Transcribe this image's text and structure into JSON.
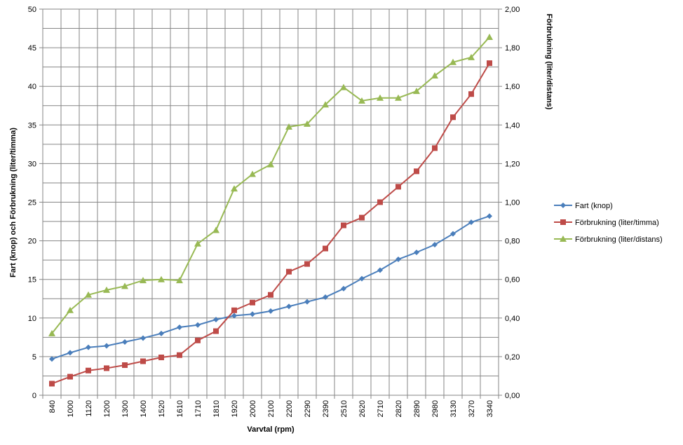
{
  "chart_data": {
    "type": "line",
    "title": "",
    "xlabel": "Varvtal (rpm)",
    "ylabel": "Fart (knop) och Förbrukning (liter/timma)",
    "y2label": "Förbrukning (liter/distans)",
    "ylim": [
      0,
      50
    ],
    "y2lim": [
      0,
      2
    ],
    "yticks": [
      "0",
      "5",
      "10",
      "15",
      "20",
      "25",
      "30",
      "35",
      "40",
      "45",
      "50"
    ],
    "y2ticks": [
      "0,00",
      "0,20",
      "0,40",
      "0,60",
      "0,80",
      "1,00",
      "1,20",
      "1,40",
      "1,60",
      "1,80",
      "2,00"
    ],
    "grid": true,
    "legend_position": "right",
    "categories": [
      "840",
      "1000",
      "1120",
      "1200",
      "1300",
      "1400",
      "1520",
      "1610",
      "1710",
      "1810",
      "1920",
      "2000",
      "2100",
      "2200",
      "2290",
      "2390",
      "2510",
      "2620",
      "2710",
      "2820",
      "2890",
      "2980",
      "3130",
      "3270",
      "3340"
    ],
    "series": [
      {
        "name": "Fart (knop)",
        "axis": "left",
        "color": "#4a7ebb",
        "marker": "diamond",
        "values": [
          4.7,
          5.5,
          6.2,
          6.4,
          6.9,
          7.4,
          8.0,
          8.8,
          9.1,
          9.8,
          10.3,
          10.5,
          10.9,
          11.5,
          12.1,
          12.7,
          13.8,
          15.1,
          16.2,
          17.6,
          18.5,
          19.5,
          20.9,
          22.4,
          23.2
        ]
      },
      {
        "name": "Förbrukning (liter/timma)",
        "axis": "left",
        "color": "#be4b48",
        "marker": "square",
        "values": [
          1.5,
          2.4,
          3.2,
          3.5,
          3.9,
          4.4,
          4.9,
          5.2,
          7.1,
          8.3,
          11.0,
          12.0,
          13.0,
          16.0,
          17.0,
          19.0,
          22.0,
          23.0,
          25.0,
          27.0,
          29.0,
          32.0,
          36.0,
          39.0,
          43.0
        ]
      },
      {
        "name": "Förbrukning (liter/distans)",
        "axis": "right",
        "color": "#98b954",
        "marker": "triangle",
        "values": [
          0.32,
          0.44,
          0.52,
          0.545,
          0.565,
          0.595,
          0.6,
          0.595,
          0.785,
          0.855,
          1.07,
          1.145,
          1.195,
          1.39,
          1.405,
          1.505,
          1.595,
          1.525,
          1.54,
          1.54,
          1.575,
          1.655,
          1.725,
          1.75,
          1.855
        ]
      }
    ]
  }
}
